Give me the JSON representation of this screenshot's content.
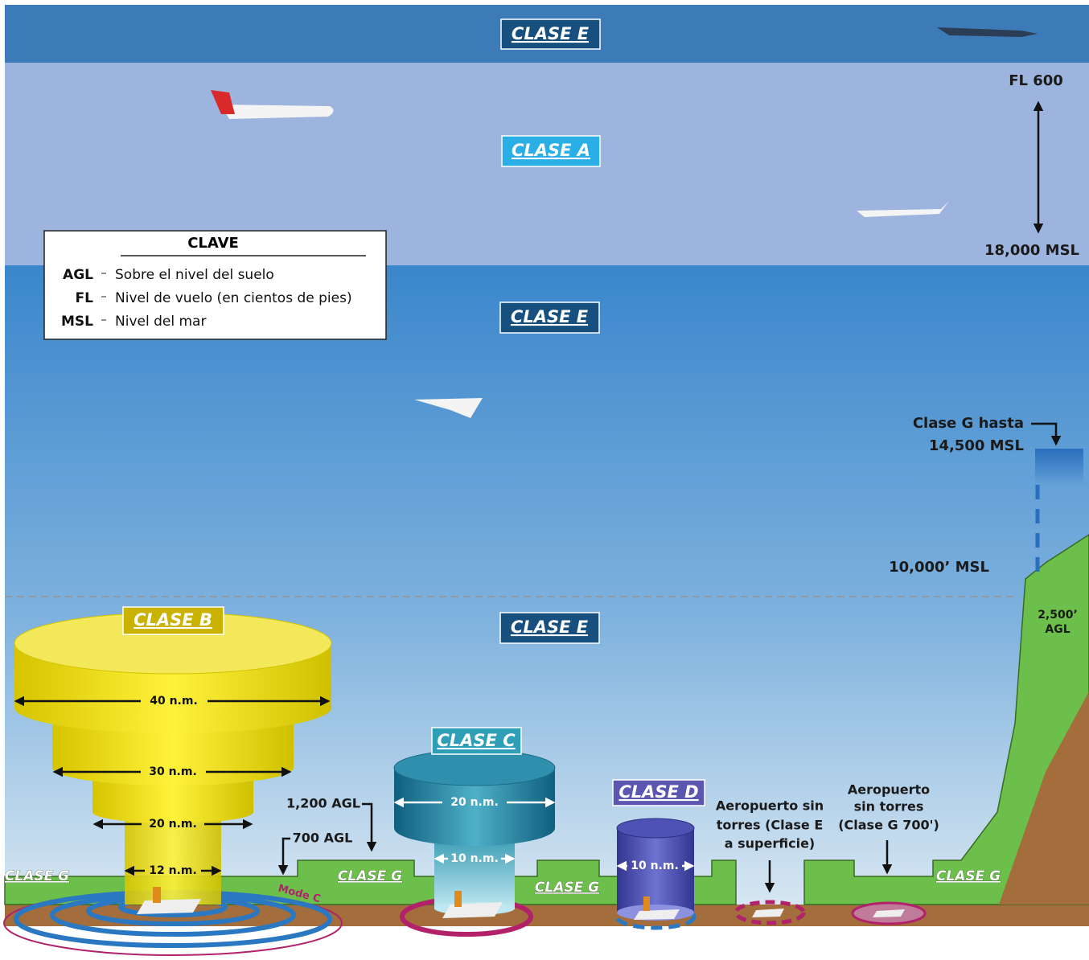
{
  "labels": {
    "top_class_e": "CLASE E",
    "class_a": "CLASE A",
    "mid_class_e": "CLASE E",
    "low_class_e": "CLASE E",
    "class_b": "CLASE B",
    "class_c": "CLASE C",
    "class_d": "CLASE D",
    "class_g": [
      "CLASE G",
      "CLASE G",
      "CLASE G",
      "CLASE G"
    ]
  },
  "key": {
    "title": "CLAVE",
    "items": [
      {
        "abbr": "AGL",
        "text": "Sobre el nivel del suelo"
      },
      {
        "abbr": "FL",
        "text": "Nivel de vuelo (en cientos de pies)"
      },
      {
        "abbr": "MSL",
        "text": "Nivel del mar"
      }
    ]
  },
  "altitudes": {
    "fl600": "FL 600",
    "msl18000": "18,000 MSL",
    "class_g_to": [
      "Clase G hasta",
      "14,500 MSL"
    ],
    "msl10000": "10,000’ MSL",
    "agl2500": [
      "2,500’",
      "AGL"
    ]
  },
  "class_b": {
    "widths": [
      "40 n.m.",
      "30 n.m.",
      "20 n.m.",
      "12 n.m."
    ],
    "agl1200": "1,200 AGL",
    "agl700": "700 AGL",
    "mode_c": "Mode C"
  },
  "class_c": {
    "widths": [
      "20 n.m.",
      "10 n.m."
    ]
  },
  "class_d": {
    "width": "10 n.m."
  },
  "airports": [
    [
      "Aeropuerto sin",
      "torres (Clase E",
      "a superficie)"
    ],
    [
      "Aeropuerto",
      "sin torres",
      "(Clase G 700')"
    ]
  ]
}
